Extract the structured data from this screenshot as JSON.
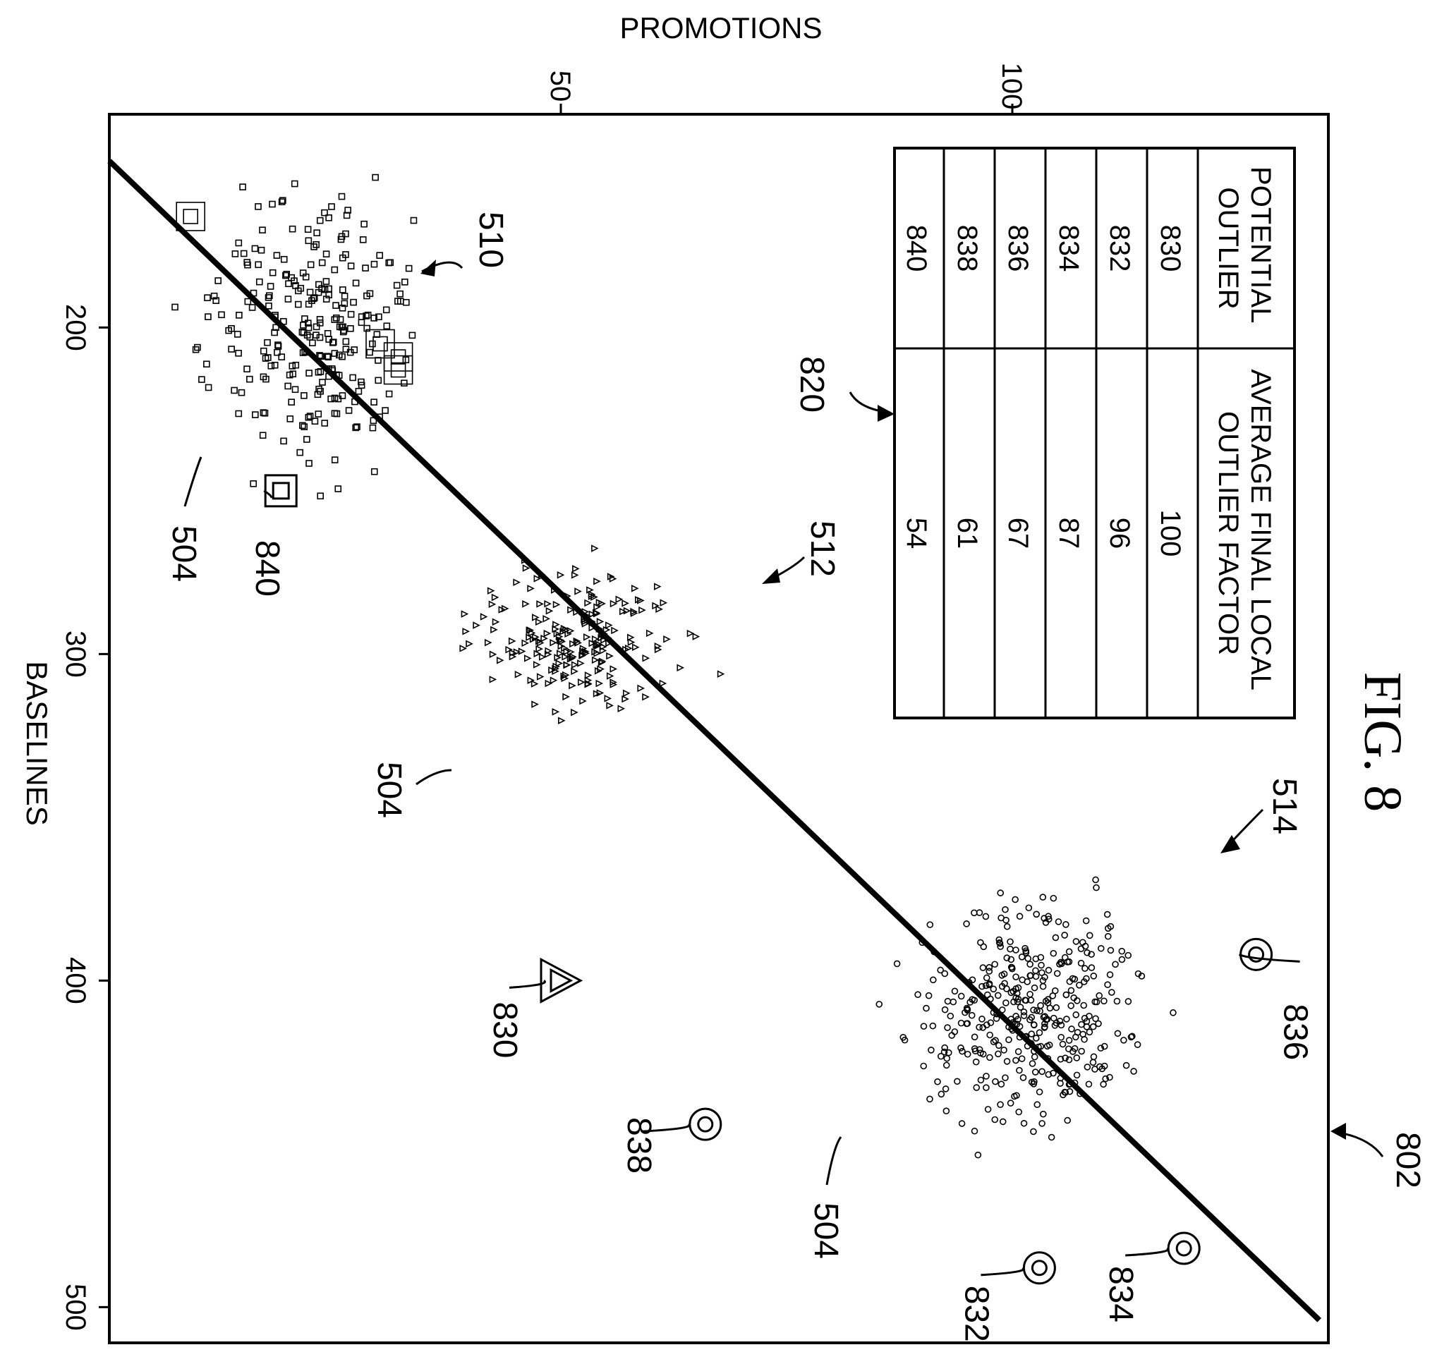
{
  "figure": {
    "title": "FIG. 8",
    "ref_labels": {
      "table": "820",
      "trend_line": "802",
      "cluster_squares": "510",
      "cluster_triangles": "512",
      "cluster_circles": "514",
      "point_marker": "504"
    }
  },
  "chart_data": {
    "type": "scatter",
    "title": "FIG. 8",
    "xlabel": "BASELINES",
    "ylabel": "PROMOTIONS",
    "x_ticks": [
      200,
      300,
      400,
      500
    ],
    "y_ticks": [
      50,
      100
    ],
    "xlim": [
      128,
      504
    ],
    "ylim": [
      0,
      134
    ],
    "grid": false,
    "series": [
      {
        "name": "510",
        "marker": "square",
        "center": [
          200,
          22
        ],
        "spread": [
          32,
          9
        ],
        "count": 260
      },
      {
        "name": "512",
        "marker": "triangle",
        "center": [
          295,
          52
        ],
        "spread": [
          18,
          10
        ],
        "count": 220
      },
      {
        "name": "514",
        "marker": "circle",
        "center": [
          410,
          102
        ],
        "spread": [
          30,
          11
        ],
        "count": 380
      }
    ],
    "trend_line": {
      "label": "802",
      "from": [
        149,
        0
      ],
      "to": [
        504,
        134
      ]
    },
    "potential_outliers": [
      {
        "id": "830",
        "x": 400,
        "y": 50,
        "marker": "triangle"
      },
      {
        "id": "832",
        "x": 488,
        "y": 103,
        "marker": "circle"
      },
      {
        "id": "834",
        "x": 482,
        "y": 119,
        "marker": "circle"
      },
      {
        "id": "836",
        "x": 392,
        "y": 127,
        "marker": "circle"
      },
      {
        "id": "838",
        "x": 444,
        "y": 66,
        "marker": "circle"
      },
      {
        "id": "840",
        "x": 250,
        "y": 19,
        "marker": "square"
      }
    ],
    "cluster_outlier_squares": [
      {
        "x": 166,
        "y": 9
      },
      {
        "x": 205,
        "y": 30
      },
      {
        "x": 209,
        "y": 32
      },
      {
        "x": 213,
        "y": 32
      }
    ],
    "table": {
      "headers": [
        "POTENTIAL OUTLIER",
        "AVERAGE FINAL LOCAL OUTLIER FACTOR"
      ],
      "rows": [
        [
          "830",
          "100"
        ],
        [
          "832",
          "96"
        ],
        [
          "834",
          "87"
        ],
        [
          "836",
          "67"
        ],
        [
          "838",
          "61"
        ],
        [
          "840",
          "54"
        ]
      ]
    }
  }
}
